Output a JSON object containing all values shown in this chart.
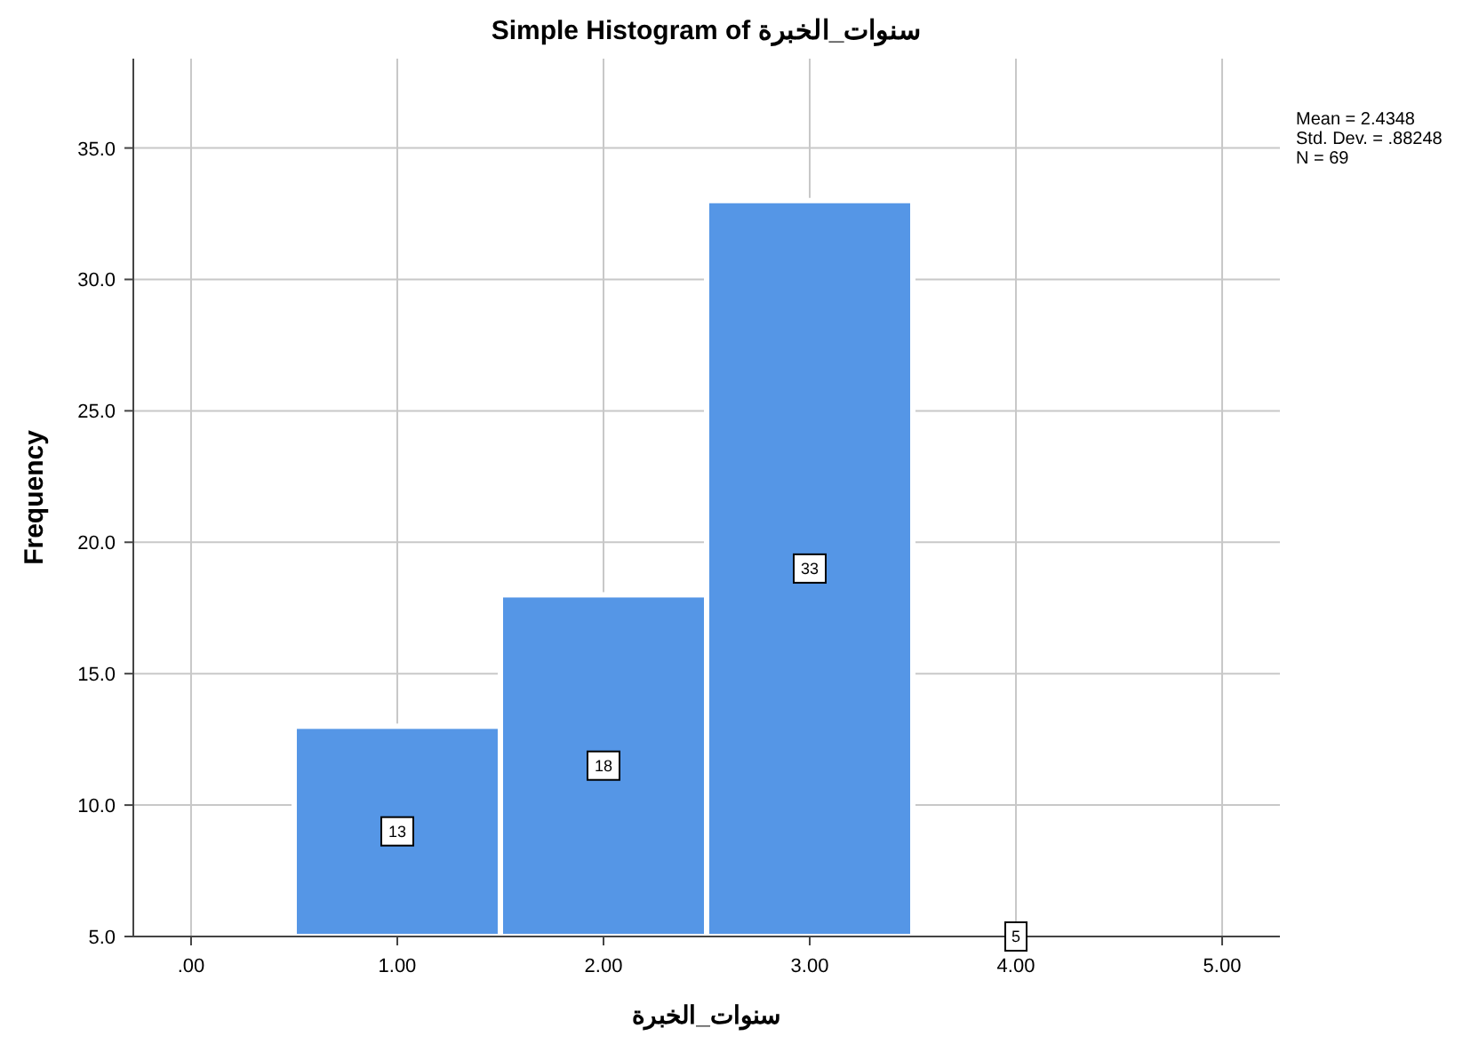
{
  "chart_data": {
    "type": "histogram",
    "title": "Simple Histogram of سنوات_الخبرة",
    "xlabel": "سنوات_الخبرة",
    "ylabel": "Frequency",
    "bins": [
      0.5,
      1.5,
      2.5,
      3.5,
      4.5
    ],
    "values": [
      13,
      18,
      33,
      5
    ],
    "color": "#5596e6",
    "data_labels": true,
    "grid": true,
    "xlim": [
      -0.28,
      5.28
    ],
    "xticks": [
      {
        "value": 0,
        "label": ".00"
      },
      {
        "value": 1,
        "label": "1.00"
      },
      {
        "value": 2,
        "label": "2.00"
      },
      {
        "value": 3,
        "label": "3.00"
      },
      {
        "value": 4,
        "label": "4.00"
      },
      {
        "value": 5,
        "label": "5.00"
      }
    ],
    "ylim": [
      5,
      38.4
    ],
    "yticks": [
      {
        "value": 5,
        "label": "5.0"
      },
      {
        "value": 10,
        "label": "10.0"
      },
      {
        "value": 15,
        "label": "15.0"
      },
      {
        "value": 20,
        "label": "20.0"
      },
      {
        "value": 25,
        "label": "25.0"
      },
      {
        "value": 30,
        "label": "30.0"
      },
      {
        "value": 35,
        "label": "35.0"
      }
    ],
    "annotations": [
      "Mean = 2.4348",
      "Std. Dev. = .88248",
      "N = 69"
    ]
  }
}
